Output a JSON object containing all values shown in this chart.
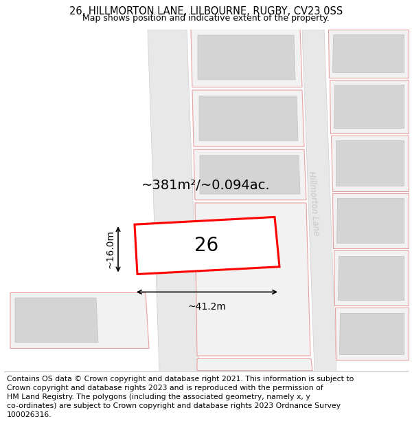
{
  "title": "26, HILLMORTON LANE, LILBOURNE, RUGBY, CV23 0SS",
  "subtitle": "Map shows position and indicative extent of the property.",
  "footer_line1": "Contains OS data © Crown copyright and database right 2021. This information is subject to",
  "footer_line2": "Crown copyright and database rights 2023 and is reproduced with the permission of",
  "footer_line3": "HM Land Registry. The polygons (including the associated geometry, namely x, y",
  "footer_line4": "co-ordinates) are subject to Crown copyright and database rights 2023 Ordnance Survey",
  "footer_line5": "100026316.",
  "area_label": "~381m²/~0.094ac.",
  "width_label": "~41.2m",
  "height_label": "~16.0m",
  "plot_number": "26",
  "bg_color": "#ffffff",
  "road_color": "#e8e8e8",
  "parcel_fill": "#f2f2f2",
  "parcel_outline": "#e8a0a0",
  "building_fill": "#d4d4d4",
  "building_outline": "#c0c0c0",
  "plot_outline_color": "#ff0000",
  "hillmorton_text_color": "#c8c8c8",
  "title_fontsize": 10.5,
  "subtitle_fontsize": 9,
  "footer_fontsize": 7.8,
  "area_fontsize": 14,
  "dim_fontsize": 10,
  "plot_num_fontsize": 20
}
